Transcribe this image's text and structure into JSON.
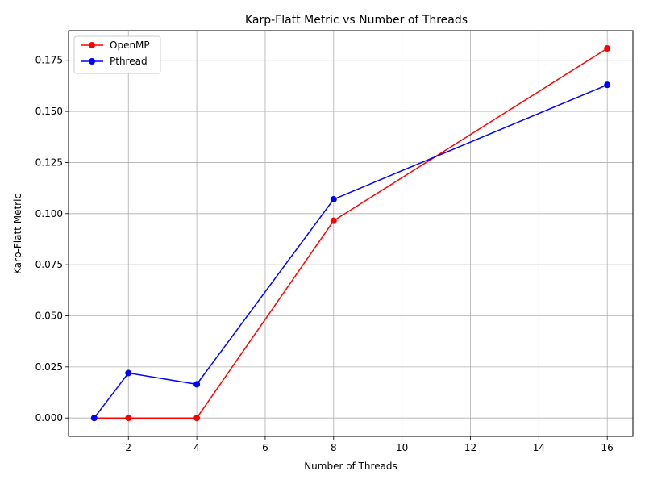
{
  "chart_data": {
    "type": "line",
    "title": "Karp-Flatt Metric vs Number of Threads",
    "xlabel": "Number of Threads",
    "ylabel": "Karp-Flatt Metric",
    "xlim": [
      0.25,
      16.75
    ],
    "ylim": [
      -0.009,
      0.1895
    ],
    "xticks": [
      2,
      4,
      6,
      8,
      10,
      12,
      14,
      16
    ],
    "yticks": [
      0.0,
      0.025,
      0.05,
      0.075,
      0.1,
      0.125,
      0.15,
      0.175
    ],
    "ytick_labels": [
      "0.000",
      "0.025",
      "0.050",
      "0.075",
      "0.100",
      "0.125",
      "0.150",
      "0.175"
    ],
    "grid": true,
    "legend_position": "top-left",
    "x": [
      1,
      2,
      4,
      8,
      16
    ],
    "series": [
      {
        "name": "OpenMP",
        "color": "#ff0000",
        "values": [
          0.0,
          0.0,
          0.0,
          0.0965,
          0.1808
        ]
      },
      {
        "name": "Pthread",
        "color": "#0000ff",
        "values": [
          0.0,
          0.022,
          0.0165,
          0.107,
          0.163
        ]
      }
    ]
  }
}
